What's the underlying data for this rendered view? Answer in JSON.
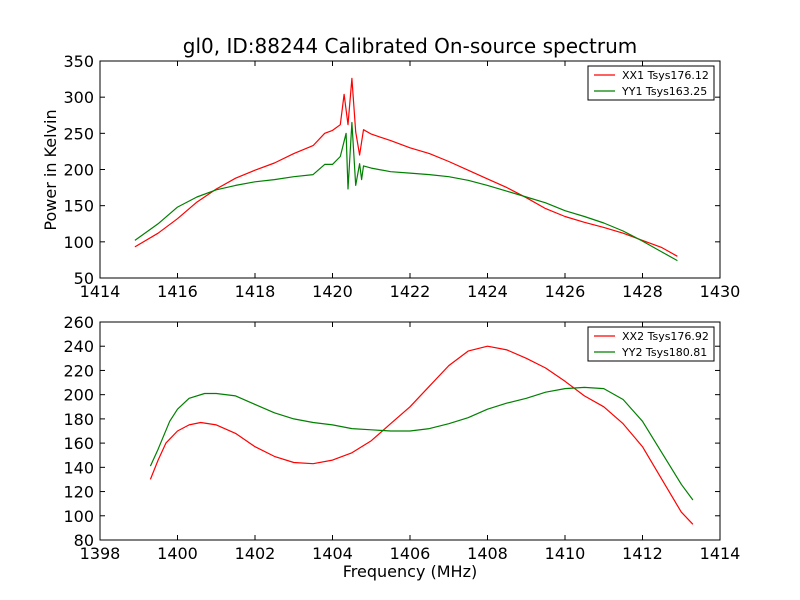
{
  "chart_data": [
    {
      "type": "line",
      "title": "gl0, ID:88244 Calibrated On-source spectrum",
      "xlabel": "",
      "ylabel": "Power in Kelvin",
      "xlim": [
        1414,
        1430
      ],
      "ylim": [
        50,
        350
      ],
      "xticks": [
        1414,
        1416,
        1418,
        1420,
        1422,
        1424,
        1426,
        1428,
        1430
      ],
      "yticks": [
        50,
        100,
        150,
        200,
        250,
        300,
        350
      ],
      "grid": false,
      "legend_position": "top-right",
      "series": [
        {
          "name": "XX1 Tsys176.12",
          "color": "#ff0000",
          "points": [
            [
              1414.9,
              93
            ],
            [
              1415.5,
              112
            ],
            [
              1416.0,
              132
            ],
            [
              1416.5,
              155
            ],
            [
              1417.0,
              173
            ],
            [
              1417.5,
              188
            ],
            [
              1418.0,
              199
            ],
            [
              1418.5,
              209
            ],
            [
              1419.0,
              222
            ],
            [
              1419.5,
              233
            ],
            [
              1419.8,
              250
            ],
            [
              1420.0,
              254
            ],
            [
              1420.2,
              262
            ],
            [
              1420.3,
              304
            ],
            [
              1420.4,
              262
            ],
            [
              1420.5,
              326
            ],
            [
              1420.6,
              252
            ],
            [
              1420.7,
              220
            ],
            [
              1420.8,
              255
            ],
            [
              1421.0,
              249
            ],
            [
              1421.5,
              240
            ],
            [
              1422.0,
              230
            ],
            [
              1422.5,
              222
            ],
            [
              1423.0,
              211
            ],
            [
              1423.5,
              199
            ],
            [
              1424.0,
              187
            ],
            [
              1424.5,
              175
            ],
            [
              1425.0,
              161
            ],
            [
              1425.5,
              146
            ],
            [
              1426.0,
              135
            ],
            [
              1426.5,
              127
            ],
            [
              1427.0,
              120
            ],
            [
              1427.5,
              112
            ],
            [
              1428.0,
              102
            ],
            [
              1428.5,
              92
            ],
            [
              1428.9,
              80
            ]
          ]
        },
        {
          "name": "YY1 Tsys163.25",
          "color": "#008000",
          "points": [
            [
              1414.9,
              102
            ],
            [
              1415.5,
              125
            ],
            [
              1416.0,
              148
            ],
            [
              1416.5,
              162
            ],
            [
              1417.0,
              172
            ],
            [
              1417.5,
              178
            ],
            [
              1418.0,
              183
            ],
            [
              1418.5,
              186
            ],
            [
              1419.0,
              190
            ],
            [
              1419.5,
              193
            ],
            [
              1419.8,
              207
            ],
            [
              1420.0,
              207
            ],
            [
              1420.2,
              218
            ],
            [
              1420.35,
              250
            ],
            [
              1420.4,
              173
            ],
            [
              1420.5,
              265
            ],
            [
              1420.6,
              178
            ],
            [
              1420.7,
              208
            ],
            [
              1420.75,
              186
            ],
            [
              1420.8,
              205
            ],
            [
              1421.0,
              202
            ],
            [
              1421.5,
              197
            ],
            [
              1422.0,
              195
            ],
            [
              1422.5,
              193
            ],
            [
              1423.0,
              190
            ],
            [
              1423.5,
              185
            ],
            [
              1424.0,
              178
            ],
            [
              1424.5,
              170
            ],
            [
              1425.0,
              162
            ],
            [
              1425.5,
              154
            ],
            [
              1426.0,
              143
            ],
            [
              1426.5,
              135
            ],
            [
              1427.0,
              126
            ],
            [
              1427.5,
              115
            ],
            [
              1428.0,
              101
            ],
            [
              1428.5,
              86
            ],
            [
              1428.9,
              74
            ]
          ]
        }
      ]
    },
    {
      "type": "line",
      "title": "",
      "xlabel": "Frequency (MHz)",
      "ylabel": "",
      "xlim": [
        1398,
        1414
      ],
      "ylim": [
        80,
        260
      ],
      "xticks": [
        1398,
        1400,
        1402,
        1404,
        1406,
        1408,
        1410,
        1412,
        1414
      ],
      "yticks": [
        80,
        100,
        120,
        140,
        160,
        180,
        200,
        220,
        240,
        260
      ],
      "grid": false,
      "legend_position": "top-right",
      "series": [
        {
          "name": "XX2 Tsys176.92",
          "color": "#ff0000",
          "points": [
            [
              1399.3,
              130
            ],
            [
              1399.5,
              146
            ],
            [
              1399.7,
              160
            ],
            [
              1400.0,
              170
            ],
            [
              1400.3,
              175
            ],
            [
              1400.6,
              177
            ],
            [
              1401.0,
              175
            ],
            [
              1401.5,
              168
            ],
            [
              1402.0,
              157
            ],
            [
              1402.5,
              149
            ],
            [
              1403.0,
              144
            ],
            [
              1403.5,
              143
            ],
            [
              1404.0,
              146
            ],
            [
              1404.5,
              152
            ],
            [
              1405.0,
              162
            ],
            [
              1405.5,
              176
            ],
            [
              1406.0,
              190
            ],
            [
              1406.5,
              207
            ],
            [
              1407.0,
              224
            ],
            [
              1407.5,
              236
            ],
            [
              1408.0,
              240
            ],
            [
              1408.5,
              237
            ],
            [
              1409.0,
              230
            ],
            [
              1409.5,
              222
            ],
            [
              1410.0,
              211
            ],
            [
              1410.5,
              199
            ],
            [
              1411.0,
              190
            ],
            [
              1411.5,
              176
            ],
            [
              1412.0,
              157
            ],
            [
              1412.5,
              130
            ],
            [
              1413.0,
              103
            ],
            [
              1413.3,
              93
            ]
          ]
        },
        {
          "name": "YY2 Tsys180.81",
          "color": "#008000",
          "points": [
            [
              1399.3,
              141
            ],
            [
              1399.5,
              155
            ],
            [
              1399.8,
              178
            ],
            [
              1400.0,
              188
            ],
            [
              1400.3,
              197
            ],
            [
              1400.7,
              201
            ],
            [
              1401.0,
              201
            ],
            [
              1401.5,
              199
            ],
            [
              1402.0,
              192
            ],
            [
              1402.5,
              185
            ],
            [
              1403.0,
              180
            ],
            [
              1403.5,
              177
            ],
            [
              1404.0,
              175
            ],
            [
              1404.5,
              172
            ],
            [
              1405.0,
              171
            ],
            [
              1405.5,
              170
            ],
            [
              1406.0,
              170
            ],
            [
              1406.5,
              172
            ],
            [
              1407.0,
              176
            ],
            [
              1407.5,
              181
            ],
            [
              1408.0,
              188
            ],
            [
              1408.5,
              193
            ],
            [
              1409.0,
              197
            ],
            [
              1409.5,
              202
            ],
            [
              1410.0,
              205
            ],
            [
              1410.5,
              206
            ],
            [
              1411.0,
              205
            ],
            [
              1411.5,
              196
            ],
            [
              1412.0,
              178
            ],
            [
              1412.5,
              152
            ],
            [
              1413.0,
              126
            ],
            [
              1413.3,
              113
            ]
          ]
        }
      ]
    }
  ]
}
